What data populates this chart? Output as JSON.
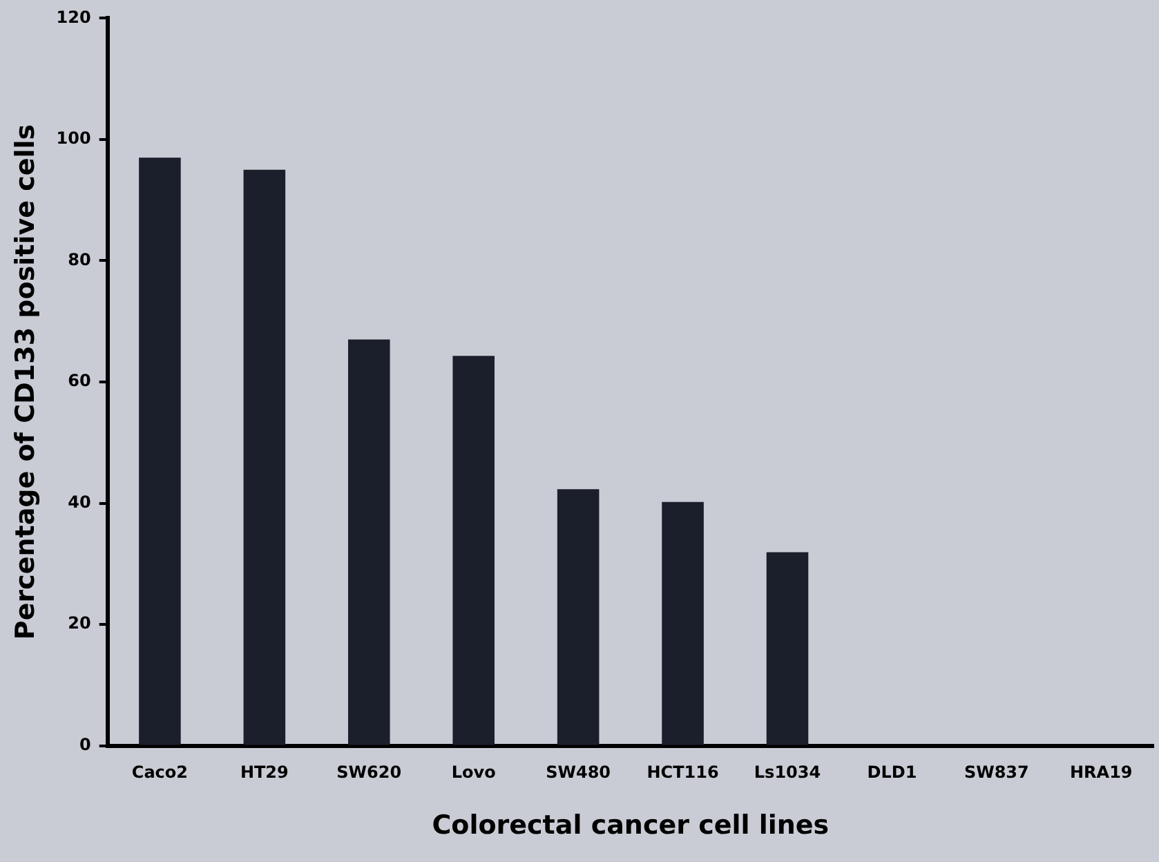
{
  "chart_data": {
    "type": "bar",
    "xlabel": "Colorectal cancer cell lines",
    "ylabel": "Percentage of CD133 positive cells",
    "categories": [
      "Caco2",
      "HT29",
      "SW620",
      "Lovo",
      "SW480",
      "HCT116",
      "Ls1034",
      "DLD1",
      "SW837",
      "HRA19"
    ],
    "values": [
      97,
      95,
      67,
      64.3,
      42.3,
      40.2,
      31.9,
      0,
      0,
      0
    ],
    "color": "#1b1f2c",
    "ylim": [
      0,
      120
    ],
    "yticks": [
      0,
      20,
      40,
      60,
      80,
      100,
      120
    ],
    "grid": false,
    "legend": false
  }
}
